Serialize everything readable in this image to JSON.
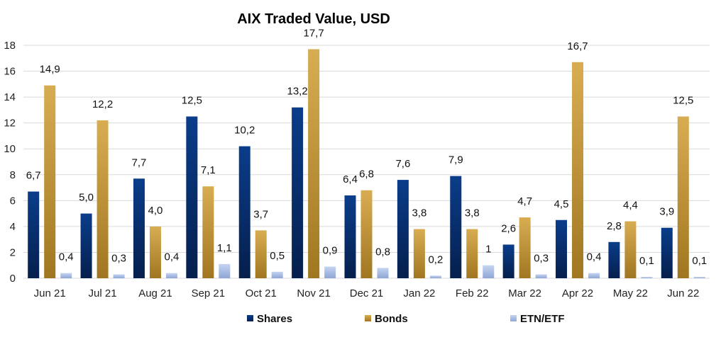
{
  "chart_data": {
    "type": "bar",
    "title": "AIX Traded Value, USD",
    "categories": [
      "Jun 21",
      "Jul 21",
      "Aug 21",
      "Sep 21",
      "Oct 21",
      "Nov 21",
      "Dec 21",
      "Jan 22",
      "Feb 22",
      "Mar 22",
      "Apr 22",
      "May 22",
      "Jun 22"
    ],
    "series": [
      {
        "name": "Shares",
        "values": [
          6.7,
          5.0,
          7.7,
          12.5,
          10.2,
          13.2,
          6.4,
          7.6,
          7.9,
          2.6,
          4.5,
          2.8,
          3.9
        ],
        "labels": [
          "6,7",
          "5,0",
          "7,7",
          "12,5",
          "10,2",
          "13,2",
          "6,4",
          "7,6",
          "7,9",
          "2,6",
          "4,5",
          "2,8",
          "3,9"
        ],
        "color_top": "#0a3d8a",
        "color_bottom": "#061f4d"
      },
      {
        "name": "Bonds",
        "values": [
          14.9,
          12.2,
          4.0,
          7.1,
          3.7,
          17.7,
          6.8,
          3.8,
          3.8,
          4.7,
          16.7,
          4.4,
          12.5
        ],
        "labels": [
          "14,9",
          "12,2",
          "4,0",
          "7,1",
          "3,7",
          "17,7",
          "6,8",
          "3,8",
          "3,8",
          "4,7",
          "16,7",
          "4,4",
          "12,5"
        ],
        "color_top": "#d8ad52",
        "color_bottom": "#a07620"
      },
      {
        "name": "ETN/ETF",
        "values": [
          0.4,
          0.3,
          0.4,
          1.1,
          0.5,
          0.9,
          0.8,
          0.2,
          1.0,
          0.3,
          0.4,
          0.1,
          0.1
        ],
        "labels": [
          "0,4",
          "0,3",
          "0,4",
          "1,1",
          "0,5",
          "0,9",
          "0,8",
          "0,2",
          "1",
          "0,3",
          "0,4",
          "0,1",
          "0,1"
        ],
        "color_top": "#c5d4f0",
        "color_bottom": "#8ea6d6"
      }
    ],
    "ylim": [
      0,
      18
    ],
    "yticks": [
      0,
      2,
      4,
      6,
      8,
      10,
      12,
      14,
      16,
      18
    ],
    "grid": true,
    "legend_position": "bottom"
  }
}
